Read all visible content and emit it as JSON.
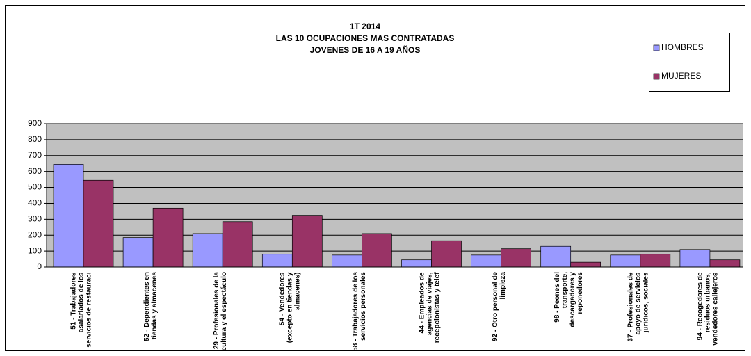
{
  "chart_data": {
    "type": "bar",
    "title": [
      "1T 2014",
      "LAS 10 OCUPACIONES MAS CONTRATADAS",
      "JOVENES DE 16 A 19 AÑOS"
    ],
    "categories": [
      "51 - Trabajadores asalariados de los servicios de restauraci",
      "52 - Dependientes en tiendas y almacenes",
      "29 - Profesionales de la cultura y el espectáculo",
      "54 - Vendedores (excepto en tiendas y almacenes)",
      "58 - Trabajadores de los servicios personales",
      "44 - Empleados de agencias de viajes, recepcionistas y telef",
      "92 - Otro personal de limpieza",
      "98 - Peones del transporte, descargadores y reponedores",
      "37 - Profesionales de apoyo de servicios jurídicos, sociales",
      "94 - Recogedores de residuos urbanos, vendedores callejeros"
    ],
    "series": [
      {
        "name": "HOMBRES",
        "color": "#9999ff",
        "values": [
          645,
          185,
          210,
          80,
          75,
          45,
          75,
          130,
          75,
          110
        ]
      },
      {
        "name": "MUJERES",
        "color": "#993366",
        "values": [
          545,
          370,
          285,
          325,
          210,
          165,
          115,
          30,
          80,
          45
        ]
      }
    ],
    "ylim": [
      0,
      900
    ],
    "yticks": [
      0,
      100,
      200,
      300,
      400,
      500,
      600,
      700,
      800,
      900
    ],
    "grid": true,
    "legend": "top-right"
  }
}
